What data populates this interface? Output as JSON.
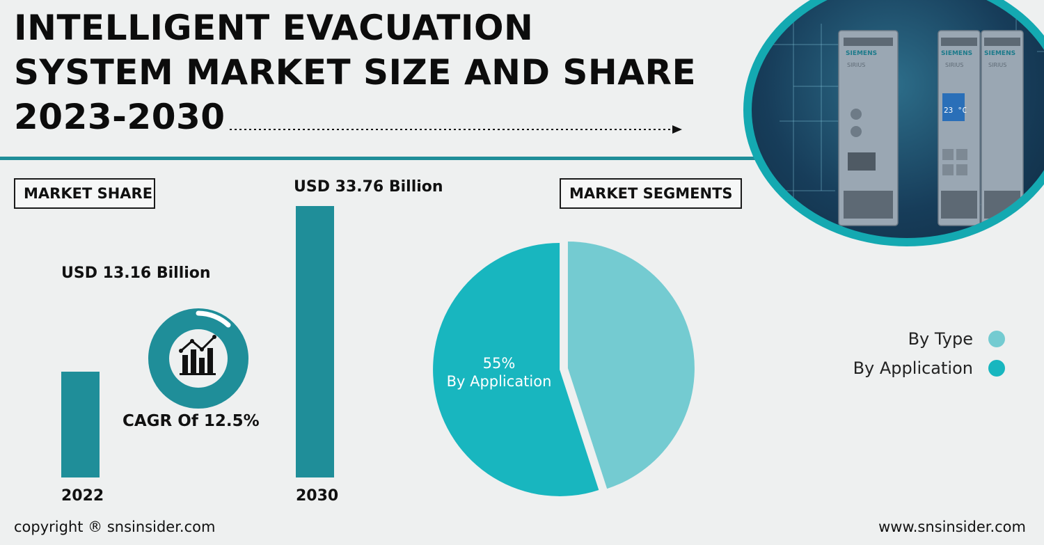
{
  "header": {
    "title_lines": [
      "INTELLIGENT EVACUATION",
      "SYSTEM MARKET SIZE AND SHARE",
      "2023-2030"
    ]
  },
  "labels": {
    "market_share": "MARKET SHARE",
    "market_segments": "MARKET SEGMENTS",
    "cagr": "CAGR Of 12.5%"
  },
  "hero_image": {
    "brand": "SIEMENS",
    "model": "SIRIUS",
    "screen_text": "23 °C"
  },
  "chart_data": [
    {
      "type": "bar",
      "categories": [
        "2022",
        "2030"
      ],
      "values": [
        13.16,
        33.76
      ],
      "value_labels": [
        "USD 13.16 Billion",
        "USD 33.76 Billion"
      ],
      "unit": "USD Billion",
      "bar_color": "#1f8e99",
      "ylim": [
        0,
        33.76
      ]
    },
    {
      "type": "pie",
      "labels": [
        "By Type",
        "By Application"
      ],
      "values": [
        45,
        55
      ],
      "colors": [
        "#74cbd1",
        "#18b6bf"
      ],
      "slice_label": {
        "percent": "55%",
        "name": "By Application"
      },
      "legend_placement": "right"
    }
  ],
  "icon": {
    "name": "growth-chart-icon",
    "ring_color": "#1f8e99"
  },
  "footer": {
    "copyright": "copyright ® snsinsider.com",
    "website": "www.snsinsider.com"
  }
}
